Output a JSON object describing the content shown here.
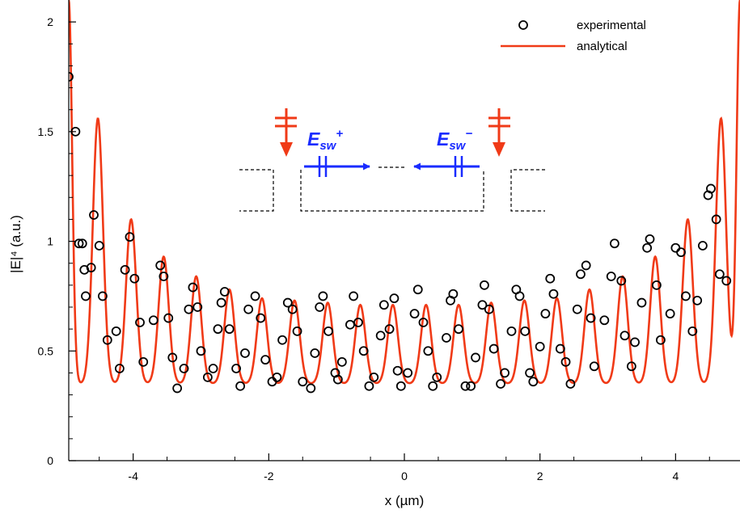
{
  "chart_data": {
    "type": "line",
    "xlabel": "x (µm)",
    "ylabel": "|E|⁴ (a.u.)",
    "xlim": [
      -4.95,
      4.95
    ],
    "ylim": [
      0,
      2.1
    ],
    "x_ticks": [
      -4,
      -2,
      0,
      2,
      4
    ],
    "x_tick_labels": [
      "-4",
      "-2",
      "0",
      "2",
      "4"
    ],
    "y_ticks": [
      0,
      0.5,
      1,
      1.5,
      2
    ],
    "y_tick_labels": [
      "0",
      "0.5",
      "1",
      "1.5",
      "2"
    ],
    "grid": false,
    "legend_position": "top-right",
    "series": [
      {
        "name": "experimental",
        "style": "open-circle markers",
        "color": "#000000",
        "points": [
          [
            -4.95,
            1.75
          ],
          [
            -4.85,
            1.5
          ],
          [
            -4.8,
            0.99
          ],
          [
            -4.75,
            0.99
          ],
          [
            -4.72,
            0.87
          ],
          [
            -4.7,
            0.75
          ],
          [
            -4.62,
            0.88
          ],
          [
            -4.58,
            1.12
          ],
          [
            -4.5,
            0.98
          ],
          [
            -4.45,
            0.75
          ],
          [
            -4.38,
            0.55
          ],
          [
            -4.25,
            0.59
          ],
          [
            -4.2,
            0.42
          ],
          [
            -4.12,
            0.87
          ],
          [
            -4.05,
            1.02
          ],
          [
            -3.98,
            0.83
          ],
          [
            -3.9,
            0.63
          ],
          [
            -3.85,
            0.45
          ],
          [
            -3.7,
            0.64
          ],
          [
            -3.6,
            0.89
          ],
          [
            -3.55,
            0.84
          ],
          [
            -3.48,
            0.65
          ],
          [
            -3.42,
            0.47
          ],
          [
            -3.35,
            0.33
          ],
          [
            -3.25,
            0.42
          ],
          [
            -3.18,
            0.69
          ],
          [
            -3.12,
            0.79
          ],
          [
            -3.05,
            0.7
          ],
          [
            -3.0,
            0.5
          ],
          [
            -2.9,
            0.38
          ],
          [
            -2.82,
            0.42
          ],
          [
            -2.75,
            0.6
          ],
          [
            -2.7,
            0.72
          ],
          [
            -2.65,
            0.77
          ],
          [
            -2.58,
            0.6
          ],
          [
            -2.48,
            0.42
          ],
          [
            -2.42,
            0.34
          ],
          [
            -2.35,
            0.49
          ],
          [
            -2.3,
            0.69
          ],
          [
            -2.2,
            0.75
          ],
          [
            -2.12,
            0.65
          ],
          [
            -2.05,
            0.46
          ],
          [
            -1.95,
            0.36
          ],
          [
            -1.88,
            0.38
          ],
          [
            -1.8,
            0.55
          ],
          [
            -1.72,
            0.72
          ],
          [
            -1.65,
            0.69
          ],
          [
            -1.58,
            0.59
          ],
          [
            -1.5,
            0.36
          ],
          [
            -1.38,
            0.33
          ],
          [
            -1.32,
            0.49
          ],
          [
            -1.25,
            0.7
          ],
          [
            -1.2,
            0.75
          ],
          [
            -1.12,
            0.59
          ],
          [
            -1.02,
            0.4
          ],
          [
            -0.98,
            0.37
          ],
          [
            -0.92,
            0.45
          ],
          [
            -0.8,
            0.62
          ],
          [
            -0.75,
            0.75
          ],
          [
            -0.68,
            0.63
          ],
          [
            -0.6,
            0.5
          ],
          [
            -0.52,
            0.34
          ],
          [
            -0.45,
            0.38
          ],
          [
            -0.35,
            0.57
          ],
          [
            -0.3,
            0.71
          ],
          [
            -0.22,
            0.6
          ],
          [
            -0.15,
            0.74
          ],
          [
            -0.1,
            0.41
          ],
          [
            -0.05,
            0.34
          ],
          [
            0.05,
            0.4
          ],
          [
            0.15,
            0.67
          ],
          [
            0.2,
            0.78
          ],
          [
            0.28,
            0.63
          ],
          [
            0.35,
            0.5
          ],
          [
            0.42,
            0.34
          ],
          [
            0.48,
            0.38
          ],
          [
            0.62,
            0.56
          ],
          [
            0.68,
            0.73
          ],
          [
            0.72,
            0.76
          ],
          [
            0.8,
            0.6
          ],
          [
            0.9,
            0.34
          ],
          [
            0.98,
            0.34
          ],
          [
            1.05,
            0.47
          ],
          [
            1.15,
            0.71
          ],
          [
            1.18,
            0.8
          ],
          [
            1.25,
            0.69
          ],
          [
            1.32,
            0.51
          ],
          [
            1.42,
            0.35
          ],
          [
            1.48,
            0.4
          ],
          [
            1.58,
            0.59
          ],
          [
            1.65,
            0.78
          ],
          [
            1.7,
            0.75
          ],
          [
            1.78,
            0.59
          ],
          [
            1.85,
            0.4
          ],
          [
            1.9,
            0.36
          ],
          [
            2.0,
            0.52
          ],
          [
            2.08,
            0.67
          ],
          [
            2.15,
            0.83
          ],
          [
            2.2,
            0.76
          ],
          [
            2.3,
            0.51
          ],
          [
            2.38,
            0.45
          ],
          [
            2.45,
            0.35
          ],
          [
            2.55,
            0.69
          ],
          [
            2.6,
            0.85
          ],
          [
            2.68,
            0.89
          ],
          [
            2.75,
            0.65
          ],
          [
            2.8,
            0.43
          ],
          [
            2.95,
            0.64
          ],
          [
            3.05,
            0.84
          ],
          [
            3.1,
            0.99
          ],
          [
            3.2,
            0.82
          ],
          [
            3.25,
            0.57
          ],
          [
            3.35,
            0.43
          ],
          [
            3.4,
            0.54
          ],
          [
            3.5,
            0.72
          ],
          [
            3.58,
            0.97
          ],
          [
            3.62,
            1.01
          ],
          [
            3.72,
            0.8
          ],
          [
            3.78,
            0.55
          ],
          [
            3.92,
            0.67
          ],
          [
            4.0,
            0.97
          ],
          [
            4.08,
            0.95
          ],
          [
            4.15,
            0.75
          ],
          [
            4.25,
            0.59
          ],
          [
            4.32,
            0.73
          ],
          [
            4.4,
            0.98
          ],
          [
            4.48,
            1.21
          ],
          [
            4.52,
            1.24
          ],
          [
            4.6,
            1.1
          ],
          [
            4.65,
            0.85
          ],
          [
            4.75,
            0.82
          ]
        ]
      },
      {
        "name": "analytical",
        "style": "solid line",
        "color": "#f03a17",
        "baseline": 0.35,
        "fringe_period_um": 0.5,
        "peak_positions": [
          -4.52,
          -4.03,
          -3.55,
          -3.07,
          -2.58,
          -2.1,
          -1.62,
          -1.13,
          -0.65,
          -0.17,
          0.32,
          0.8,
          1.28,
          1.77,
          2.25,
          2.73,
          3.22,
          3.7,
          4.18,
          4.67
        ],
        "peak_values": [
          1.56,
          1.1,
          0.93,
          0.84,
          0.78,
          0.74,
          0.73,
          0.72,
          0.71,
          0.71,
          0.71,
          0.71,
          0.72,
          0.73,
          0.74,
          0.78,
          0.84,
          0.93,
          1.1,
          1.56
        ],
        "edge_rise_at_x": [
          -4.95,
          4.95
        ],
        "edge_rise_value": 2.1
      }
    ],
    "inset": {
      "label_plus": "E",
      "label_plus_sub": "sw",
      "label_plus_sup": "+",
      "label_minus": "E",
      "label_minus_sub": "sw",
      "label_minus_sup": "−",
      "arrow_color": "#1a2cff",
      "source_color": "#f03a17"
    }
  }
}
